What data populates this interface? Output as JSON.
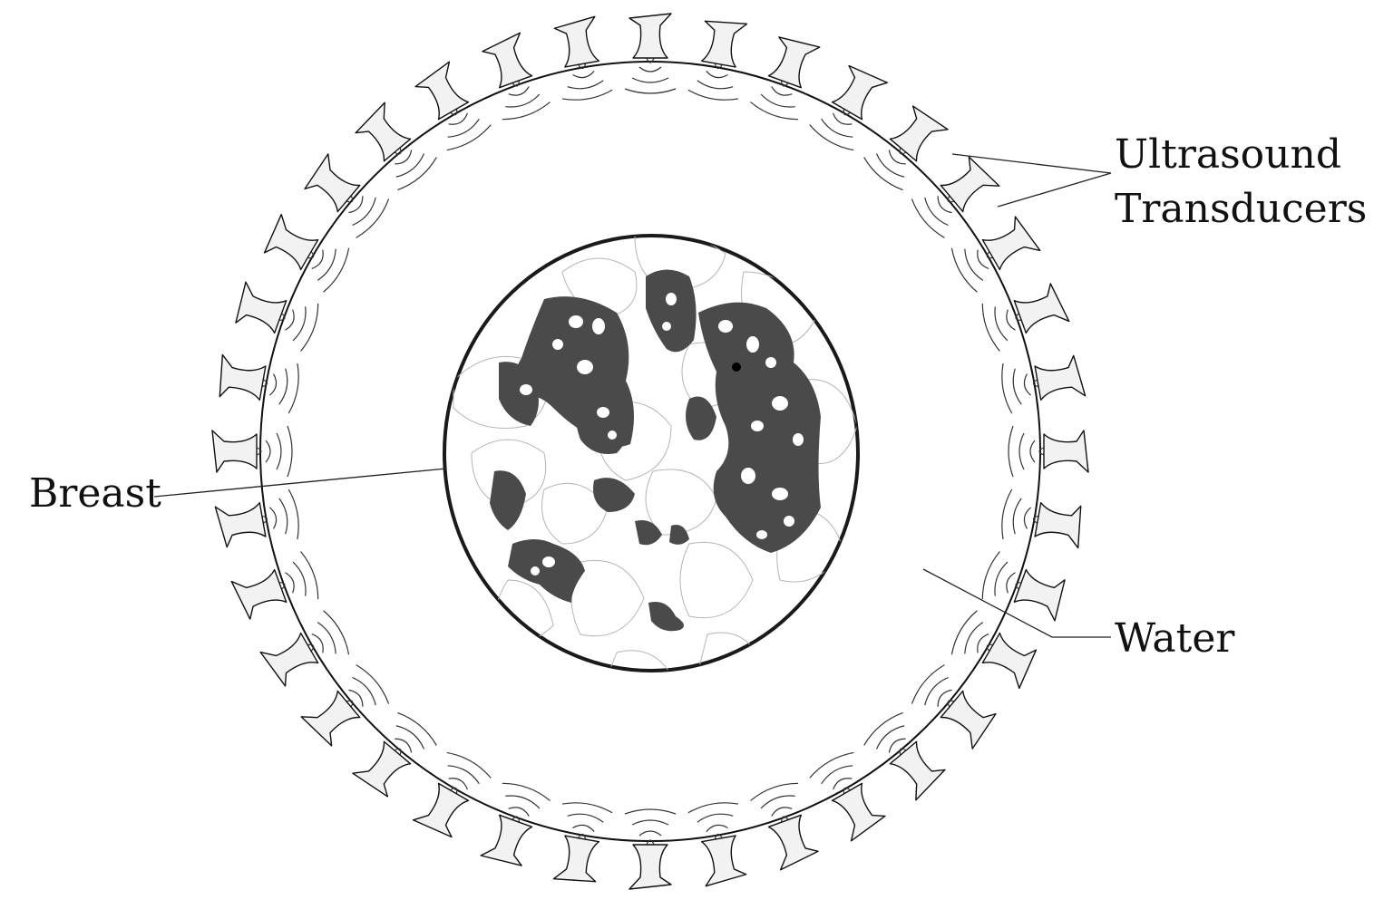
{
  "labels": {
    "transducers_line1": "Ultrasound",
    "transducers_line2": "Transducers",
    "breast": "Breast",
    "water": "Water"
  },
  "transducer_count": 36,
  "colors": {
    "ring": "#111111",
    "transducer_fill": "#f2f2f2",
    "dense_tissue": "#4a4a4a",
    "breast_outline": "#1a1a1a",
    "background": "#ffffff"
  }
}
